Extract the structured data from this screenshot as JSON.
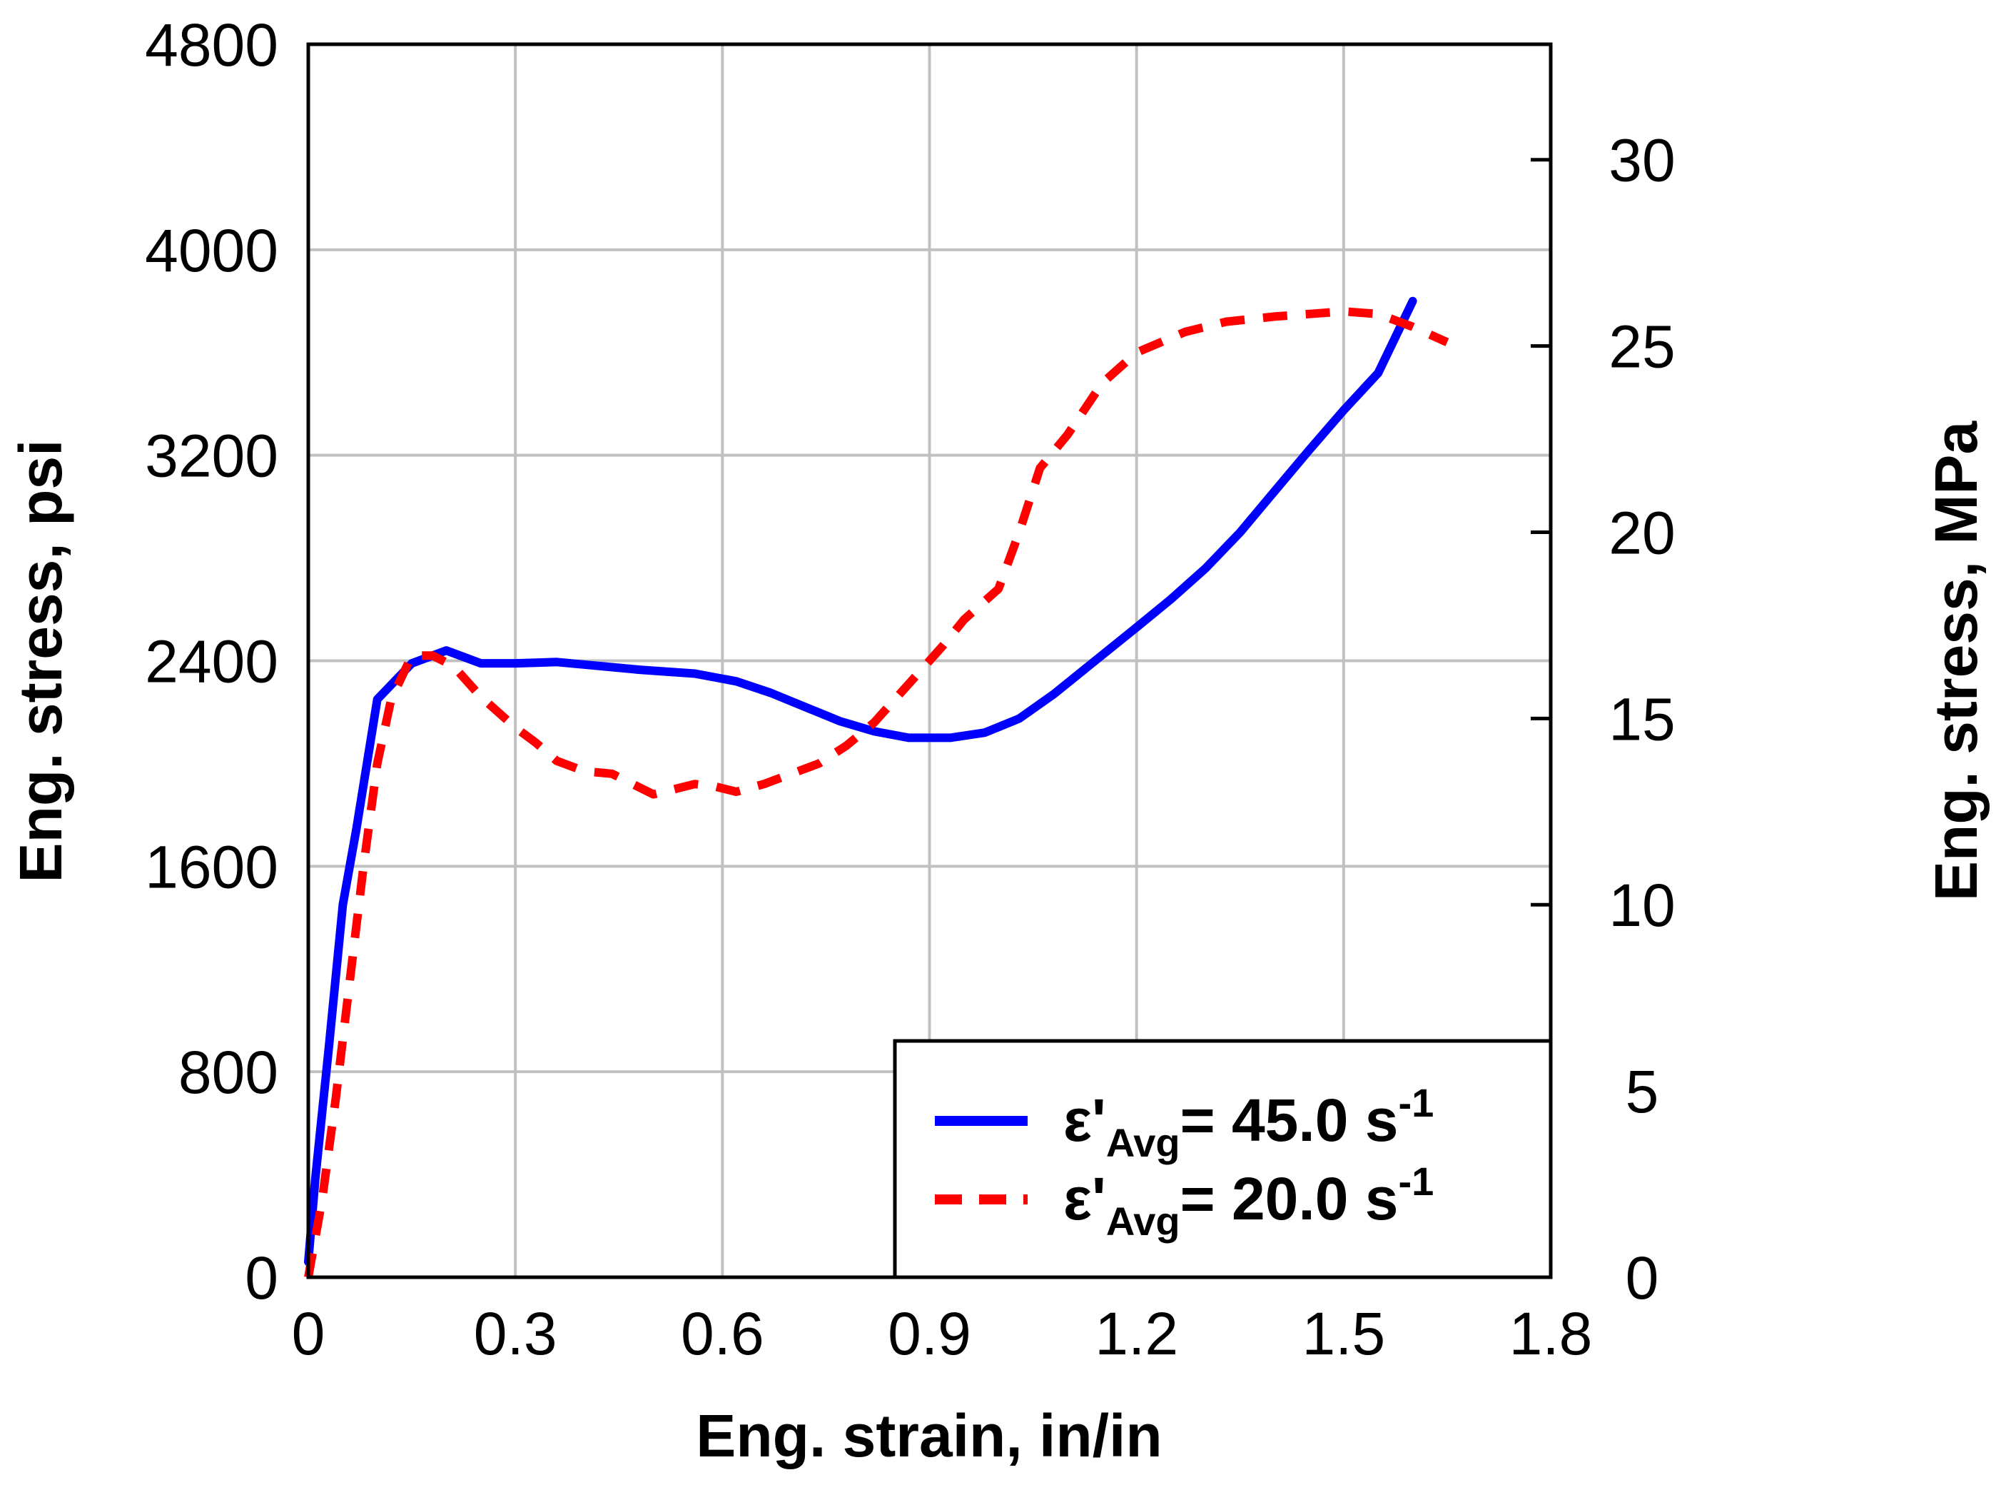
{
  "chart_data": {
    "type": "line",
    "title": "",
    "xlabel": "Eng. strain, in/in",
    "ylabel": "Eng. stress, psi",
    "y2label": "Eng. stress, MPa",
    "xlim": [
      0,
      1.8
    ],
    "ylim": [
      0,
      4800
    ],
    "y2lim": [
      0,
      33.1
    ],
    "grid": true,
    "x_ticks": [
      "0",
      "0.3",
      "0.6",
      "0.9",
      "1.2",
      "1.5",
      "1.8"
    ],
    "y_ticks": [
      "0",
      "800",
      "1600",
      "2400",
      "3200",
      "4000",
      "4800"
    ],
    "y2_ticks": [
      "0",
      "5",
      "10",
      "15",
      "20",
      "25",
      "30"
    ],
    "legend_position": "bottom-right",
    "series": [
      {
        "name": "ε'Avg= 45.0 s-1",
        "label_main": "ε'",
        "label_sub": "Avg",
        "label_rest": "= 45.0 s",
        "label_sup": "-1",
        "color": "#0000ff",
        "style": "solid",
        "x": [
          0.0,
          0.01,
          0.03,
          0.05,
          0.07,
          0.1,
          0.15,
          0.2,
          0.25,
          0.3,
          0.36,
          0.42,
          0.48,
          0.56,
          0.62,
          0.67,
          0.72,
          0.77,
          0.82,
          0.87,
          0.93,
          0.98,
          1.03,
          1.08,
          1.14,
          1.2,
          1.25,
          1.3,
          1.35,
          1.4,
          1.45,
          1.5,
          1.55,
          1.6
        ],
        "y": [
          60,
          380,
          900,
          1450,
          1750,
          2250,
          2390,
          2440,
          2390,
          2390,
          2395,
          2380,
          2365,
          2350,
          2320,
          2275,
          2220,
          2165,
          2125,
          2100,
          2100,
          2120,
          2175,
          2270,
          2400,
          2530,
          2640,
          2760,
          2900,
          3060,
          3220,
          3375,
          3520,
          3800
        ]
      },
      {
        "name": "ε'Avg= 20.0 s-1",
        "label_main": "ε'",
        "label_sub": "Avg",
        "label_rest": "= 20.0 s",
        "label_sup": "-1",
        "color": "#ff0000",
        "style": "dashed",
        "x": [
          0.0,
          0.02,
          0.04,
          0.06,
          0.08,
          0.1,
          0.12,
          0.15,
          0.18,
          0.21,
          0.25,
          0.3,
          0.33,
          0.36,
          0.4,
          0.44,
          0.47,
          0.5,
          0.53,
          0.56,
          0.59,
          0.62,
          0.66,
          0.7,
          0.74,
          0.78,
          0.82,
          0.85,
          0.88,
          0.92,
          0.95,
          1.0,
          1.03,
          1.06,
          1.1,
          1.15,
          1.2,
          1.27,
          1.33,
          1.4,
          1.45,
          1.5,
          1.55,
          1.6,
          1.65
        ],
        "y": [
          0,
          300,
          700,
          1150,
          1600,
          2000,
          2250,
          2420,
          2420,
          2380,
          2260,
          2140,
          2080,
          2010,
          1970,
          1960,
          1920,
          1880,
          1900,
          1920,
          1910,
          1890,
          1920,
          1960,
          2000,
          2070,
          2160,
          2250,
          2340,
          2460,
          2560,
          2680,
          2900,
          3150,
          3280,
          3480,
          3600,
          3680,
          3720,
          3740,
          3750,
          3760,
          3750,
          3700,
          3640
        ]
      }
    ]
  }
}
